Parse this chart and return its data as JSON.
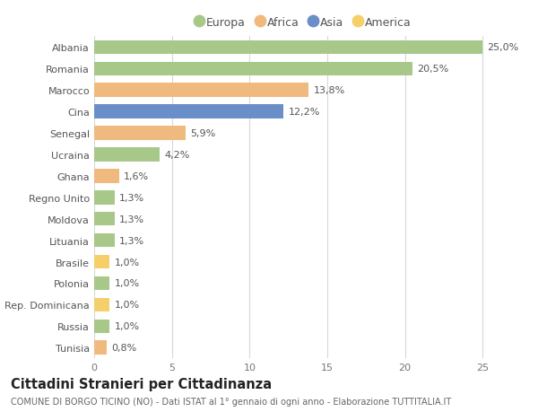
{
  "categories": [
    "Albania",
    "Romania",
    "Marocco",
    "Cina",
    "Senegal",
    "Ucraina",
    "Ghana",
    "Regno Unito",
    "Moldova",
    "Lituania",
    "Brasile",
    "Polonia",
    "Rep. Dominicana",
    "Russia",
    "Tunisia"
  ],
  "values": [
    25.0,
    20.5,
    13.8,
    12.2,
    5.9,
    4.2,
    1.6,
    1.3,
    1.3,
    1.3,
    1.0,
    1.0,
    1.0,
    1.0,
    0.8
  ],
  "labels": [
    "25,0%",
    "20,5%",
    "13,8%",
    "12,2%",
    "5,9%",
    "4,2%",
    "1,6%",
    "1,3%",
    "1,3%",
    "1,3%",
    "1,0%",
    "1,0%",
    "1,0%",
    "1,0%",
    "0,8%"
  ],
  "continents": [
    "Europa",
    "Europa",
    "Africa",
    "Asia",
    "Africa",
    "Europa",
    "Africa",
    "Europa",
    "Europa",
    "Europa",
    "America",
    "Europa",
    "America",
    "Europa",
    "Africa"
  ],
  "colors": {
    "Europa": "#a8c88a",
    "Africa": "#f0b97e",
    "Asia": "#6a8ec8",
    "America": "#f5cf6a"
  },
  "legend_order": [
    "Europa",
    "Africa",
    "Asia",
    "America"
  ],
  "xlim_max": 27,
  "xticks": [
    0,
    5,
    10,
    15,
    20,
    25
  ],
  "title": "Cittadini Stranieri per Cittadinanza",
  "subtitle": "COMUNE DI BORGO TICINO (NO) - Dati ISTAT al 1° gennaio di ogni anno - Elaborazione TUTTITALIA.IT",
  "bg_color": "#ffffff",
  "grid_color": "#d8d8d8",
  "bar_height": 0.65,
  "label_fontsize": 8,
  "tick_fontsize": 8,
  "title_fontsize": 10.5,
  "subtitle_fontsize": 7,
  "legend_fontsize": 9
}
